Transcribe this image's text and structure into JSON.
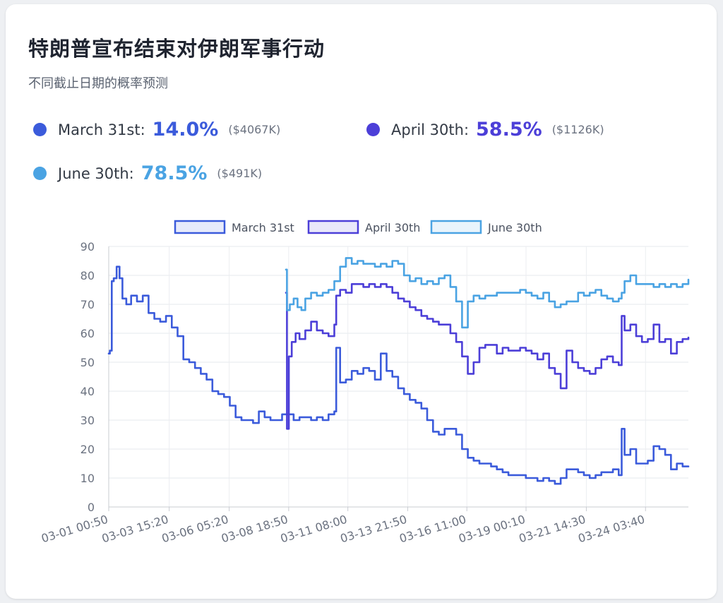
{
  "title": "特朗普宣布结束对伊朗军事行动",
  "subtitle": "不同截止日期的概率预测",
  "stats": [
    {
      "label": "March 31st:",
      "percent": "14.0%",
      "volume": "($4067K)",
      "color": "#3b5bdb"
    },
    {
      "label": "April 30th:",
      "percent": "58.5%",
      "volume": "($1126K)",
      "color": "#4c3fd8"
    },
    {
      "label": "June 30th:",
      "percent": "78.5%",
      "volume": "($491K)",
      "color": "#4aa3e3"
    }
  ],
  "chart_data": {
    "type": "line",
    "title": "",
    "xlabel": "",
    "ylabel": "",
    "ylim": [
      0,
      90
    ],
    "yticks": [
      0,
      10,
      20,
      30,
      40,
      50,
      60,
      70,
      80,
      90
    ],
    "x_range": [
      "03-01 00:50",
      "03-26 00:00"
    ],
    "xticks": [
      "03-01 00:50",
      "03-03 15:20",
      "03-06 05:20",
      "03-08 18:50",
      "03-11 08:00",
      "03-13 21:50",
      "03-16 11:00",
      "03-19 00:10",
      "03-21 14:30",
      "03-24 03:40"
    ],
    "grid": true,
    "legend_position": "top",
    "series": [
      {
        "name": "March 31st",
        "color": "#3b5bdb",
        "fill": "rgba(59,91,219,0.12)",
        "points": [
          [
            "03-01 00:50",
            53
          ],
          [
            "03-01 02:00",
            54
          ],
          [
            "03-01 04:00",
            78
          ],
          [
            "03-01 06:00",
            79
          ],
          [
            "03-01 09:00",
            83
          ],
          [
            "03-01 12:00",
            79
          ],
          [
            "03-01 15:00",
            72
          ],
          [
            "03-01 19:00",
            70
          ],
          [
            "03-02 00:00",
            73
          ],
          [
            "03-02 06:00",
            71
          ],
          [
            "03-02 12:00",
            73
          ],
          [
            "03-02 18:00",
            67
          ],
          [
            "03-03 00:00",
            65
          ],
          [
            "03-03 06:00",
            64
          ],
          [
            "03-03 12:00",
            66
          ],
          [
            "03-03 18:00",
            62
          ],
          [
            "03-04 00:00",
            59
          ],
          [
            "03-04 06:00",
            51
          ],
          [
            "03-04 12:00",
            50
          ],
          [
            "03-04 18:00",
            48
          ],
          [
            "03-05 00:00",
            46
          ],
          [
            "03-05 06:00",
            44
          ],
          [
            "03-05 12:00",
            40
          ],
          [
            "03-05 18:00",
            39
          ],
          [
            "03-06 00:00",
            38
          ],
          [
            "03-06 06:00",
            35
          ],
          [
            "03-06 12:00",
            31
          ],
          [
            "03-06 18:00",
            30
          ],
          [
            "03-07 00:00",
            30
          ],
          [
            "03-07 06:00",
            29
          ],
          [
            "03-07 12:00",
            33
          ],
          [
            "03-07 18:00",
            31
          ],
          [
            "03-08 00:00",
            30
          ],
          [
            "03-08 06:00",
            30
          ],
          [
            "03-08 12:00",
            32
          ],
          [
            "03-08 18:00",
            32
          ],
          [
            "03-09 00:00",
            30
          ],
          [
            "03-09 06:00",
            31
          ],
          [
            "03-09 12:00",
            31
          ],
          [
            "03-09 18:00",
            30
          ],
          [
            "03-10 00:00",
            31
          ],
          [
            "03-10 06:00",
            30
          ],
          [
            "03-10 12:00",
            32
          ],
          [
            "03-10 18:00",
            33
          ],
          [
            "03-10 20:00",
            55
          ],
          [
            "03-11 00:00",
            43
          ],
          [
            "03-11 06:00",
            44
          ],
          [
            "03-11 12:00",
            47
          ],
          [
            "03-11 18:00",
            46
          ],
          [
            "03-12 00:00",
            48
          ],
          [
            "03-12 06:00",
            47
          ],
          [
            "03-12 12:00",
            44
          ],
          [
            "03-12 18:00",
            53
          ],
          [
            "03-13 00:00",
            47
          ],
          [
            "03-13 06:00",
            45
          ],
          [
            "03-13 12:00",
            41
          ],
          [
            "03-13 18:00",
            39
          ],
          [
            "03-14 00:00",
            37
          ],
          [
            "03-14 06:00",
            36
          ],
          [
            "03-14 12:00",
            34
          ],
          [
            "03-14 18:00",
            30
          ],
          [
            "03-15 00:00",
            26
          ],
          [
            "03-15 06:00",
            25
          ],
          [
            "03-15 12:00",
            27
          ],
          [
            "03-15 18:00",
            27
          ],
          [
            "03-16 00:00",
            25
          ],
          [
            "03-16 06:00",
            20
          ],
          [
            "03-16 12:00",
            17
          ],
          [
            "03-16 18:00",
            16
          ],
          [
            "03-17 00:00",
            15
          ],
          [
            "03-17 06:00",
            15
          ],
          [
            "03-17 12:00",
            14
          ],
          [
            "03-17 18:00",
            13
          ],
          [
            "03-18 00:00",
            12
          ],
          [
            "03-18 06:00",
            11
          ],
          [
            "03-18 12:00",
            11
          ],
          [
            "03-18 18:00",
            11
          ],
          [
            "03-19 00:00",
            10
          ],
          [
            "03-19 06:00",
            10
          ],
          [
            "03-19 12:00",
            9
          ],
          [
            "03-19 18:00",
            10
          ],
          [
            "03-20 00:00",
            9
          ],
          [
            "03-20 06:00",
            8
          ],
          [
            "03-20 12:00",
            10
          ],
          [
            "03-20 18:00",
            13
          ],
          [
            "03-21 00:00",
            13
          ],
          [
            "03-21 06:00",
            12
          ],
          [
            "03-21 12:00",
            11
          ],
          [
            "03-21 18:00",
            10
          ],
          [
            "03-22 00:00",
            11
          ],
          [
            "03-22 06:00",
            12
          ],
          [
            "03-22 12:00",
            12
          ],
          [
            "03-22 18:00",
            13
          ],
          [
            "03-23 00:00",
            11
          ],
          [
            "03-23 03:00",
            27
          ],
          [
            "03-23 06:00",
            18
          ],
          [
            "03-23 12:00",
            20
          ],
          [
            "03-23 18:00",
            15
          ],
          [
            "03-24 00:00",
            15
          ],
          [
            "03-24 06:00",
            16
          ],
          [
            "03-24 12:00",
            21
          ],
          [
            "03-24 18:00",
            20
          ],
          [
            "03-25 00:00",
            18
          ],
          [
            "03-25 06:00",
            13
          ],
          [
            "03-25 12:00",
            15
          ],
          [
            "03-25 18:00",
            14
          ],
          [
            "03-26 00:00",
            14
          ]
        ]
      },
      {
        "name": "April 30th",
        "color": "#4c3fd8",
        "fill": "rgba(76,63,216,0.12)",
        "points": [
          [
            "03-08 16:00",
            74
          ],
          [
            "03-08 17:00",
            27
          ],
          [
            "03-08 19:00",
            52
          ],
          [
            "03-08 22:00",
            57
          ],
          [
            "03-09 02:00",
            60
          ],
          [
            "03-09 06:00",
            58
          ],
          [
            "03-09 12:00",
            61
          ],
          [
            "03-09 18:00",
            64
          ],
          [
            "03-10 00:00",
            61
          ],
          [
            "03-10 06:00",
            60
          ],
          [
            "03-10 12:00",
            59
          ],
          [
            "03-10 18:00",
            63
          ],
          [
            "03-10 20:00",
            73
          ],
          [
            "03-11 00:00",
            75
          ],
          [
            "03-11 06:00",
            74
          ],
          [
            "03-11 12:00",
            77
          ],
          [
            "03-11 18:00",
            77
          ],
          [
            "03-12 00:00",
            76
          ],
          [
            "03-12 06:00",
            77
          ],
          [
            "03-12 12:00",
            76
          ],
          [
            "03-12 18:00",
            77
          ],
          [
            "03-13 00:00",
            76
          ],
          [
            "03-13 06:00",
            74
          ],
          [
            "03-13 12:00",
            72
          ],
          [
            "03-13 18:00",
            71
          ],
          [
            "03-14 00:00",
            69
          ],
          [
            "03-14 06:00",
            68
          ],
          [
            "03-14 12:00",
            66
          ],
          [
            "03-14 18:00",
            65
          ],
          [
            "03-15 00:00",
            64
          ],
          [
            "03-15 06:00",
            63
          ],
          [
            "03-15 12:00",
            63
          ],
          [
            "03-15 18:00",
            60
          ],
          [
            "03-16 00:00",
            57
          ],
          [
            "03-16 06:00",
            52
          ],
          [
            "03-16 12:00",
            46
          ],
          [
            "03-16 18:00",
            50
          ],
          [
            "03-17 00:00",
            55
          ],
          [
            "03-17 06:00",
            56
          ],
          [
            "03-17 12:00",
            56
          ],
          [
            "03-17 18:00",
            53
          ],
          [
            "03-18 00:00",
            55
          ],
          [
            "03-18 06:00",
            54
          ],
          [
            "03-18 12:00",
            54
          ],
          [
            "03-18 18:00",
            55
          ],
          [
            "03-19 00:00",
            54
          ],
          [
            "03-19 06:00",
            53
          ],
          [
            "03-19 12:00",
            51
          ],
          [
            "03-19 18:00",
            53
          ],
          [
            "03-20 00:00",
            48
          ],
          [
            "03-20 06:00",
            46
          ],
          [
            "03-20 12:00",
            41
          ],
          [
            "03-20 18:00",
            54
          ],
          [
            "03-21 00:00",
            50
          ],
          [
            "03-21 06:00",
            48
          ],
          [
            "03-21 12:00",
            47
          ],
          [
            "03-21 18:00",
            46
          ],
          [
            "03-22 00:00",
            48
          ],
          [
            "03-22 06:00",
            51
          ],
          [
            "03-22 12:00",
            52
          ],
          [
            "03-22 18:00",
            50
          ],
          [
            "03-23 00:00",
            49
          ],
          [
            "03-23 03:00",
            66
          ],
          [
            "03-23 06:00",
            61
          ],
          [
            "03-23 12:00",
            63
          ],
          [
            "03-23 18:00",
            59
          ],
          [
            "03-24 00:00",
            57
          ],
          [
            "03-24 06:00",
            58
          ],
          [
            "03-24 12:00",
            63
          ],
          [
            "03-24 18:00",
            57
          ],
          [
            "03-25 00:00",
            58
          ],
          [
            "03-25 06:00",
            53
          ],
          [
            "03-25 12:00",
            57
          ],
          [
            "03-25 18:00",
            58
          ],
          [
            "03-26 00:00",
            58.5
          ]
        ]
      },
      {
        "name": "June 30th",
        "color": "#4aa3e3",
        "fill": "rgba(74,163,227,0.12)",
        "points": [
          [
            "03-08 16:00",
            82
          ],
          [
            "03-08 17:00",
            68
          ],
          [
            "03-08 20:00",
            70
          ],
          [
            "03-09 00:00",
            72
          ],
          [
            "03-09 04:00",
            69
          ],
          [
            "03-09 08:00",
            68
          ],
          [
            "03-09 12:00",
            72
          ],
          [
            "03-09 18:00",
            74
          ],
          [
            "03-10 00:00",
            73
          ],
          [
            "03-10 06:00",
            74
          ],
          [
            "03-10 12:00",
            75
          ],
          [
            "03-10 18:00",
            78
          ],
          [
            "03-11 00:00",
            83
          ],
          [
            "03-11 06:00",
            86
          ],
          [
            "03-11 12:00",
            84
          ],
          [
            "03-11 18:00",
            85
          ],
          [
            "03-12 00:00",
            84
          ],
          [
            "03-12 06:00",
            84
          ],
          [
            "03-12 12:00",
            83
          ],
          [
            "03-12 18:00",
            84
          ],
          [
            "03-13 00:00",
            83
          ],
          [
            "03-13 06:00",
            85
          ],
          [
            "03-13 12:00",
            84
          ],
          [
            "03-13 18:00",
            80
          ],
          [
            "03-14 00:00",
            78
          ],
          [
            "03-14 06:00",
            79
          ],
          [
            "03-14 12:00",
            77
          ],
          [
            "03-14 18:00",
            78
          ],
          [
            "03-15 00:00",
            77
          ],
          [
            "03-15 06:00",
            79
          ],
          [
            "03-15 12:00",
            80
          ],
          [
            "03-15 18:00",
            76
          ],
          [
            "03-16 00:00",
            71
          ],
          [
            "03-16 06:00",
            62
          ],
          [
            "03-16 12:00",
            71
          ],
          [
            "03-16 18:00",
            73
          ],
          [
            "03-17 00:00",
            72
          ],
          [
            "03-17 06:00",
            73
          ],
          [
            "03-17 12:00",
            73
          ],
          [
            "03-17 18:00",
            74
          ],
          [
            "03-18 00:00",
            74
          ],
          [
            "03-18 06:00",
            74
          ],
          [
            "03-18 12:00",
            74
          ],
          [
            "03-18 18:00",
            75
          ],
          [
            "03-19 00:00",
            74
          ],
          [
            "03-19 06:00",
            73
          ],
          [
            "03-19 12:00",
            72
          ],
          [
            "03-19 18:00",
            74
          ],
          [
            "03-20 00:00",
            71
          ],
          [
            "03-20 06:00",
            69
          ],
          [
            "03-20 12:00",
            70
          ],
          [
            "03-20 18:00",
            71
          ],
          [
            "03-21 00:00",
            71
          ],
          [
            "03-21 06:00",
            74
          ],
          [
            "03-21 12:00",
            73
          ],
          [
            "03-21 18:00",
            74
          ],
          [
            "03-22 00:00",
            75
          ],
          [
            "03-22 06:00",
            73
          ],
          [
            "03-22 12:00",
            72
          ],
          [
            "03-22 18:00",
            71
          ],
          [
            "03-23 00:00",
            72
          ],
          [
            "03-23 03:00",
            74
          ],
          [
            "03-23 06:00",
            78
          ],
          [
            "03-23 12:00",
            80
          ],
          [
            "03-23 18:00",
            77
          ],
          [
            "03-24 00:00",
            77
          ],
          [
            "03-24 06:00",
            77
          ],
          [
            "03-24 12:00",
            76
          ],
          [
            "03-24 18:00",
            77
          ],
          [
            "03-25 00:00",
            76
          ],
          [
            "03-25 06:00",
            77
          ],
          [
            "03-25 12:00",
            76
          ],
          [
            "03-25 18:00",
            77
          ],
          [
            "03-26 00:00",
            78.5
          ]
        ]
      }
    ]
  }
}
